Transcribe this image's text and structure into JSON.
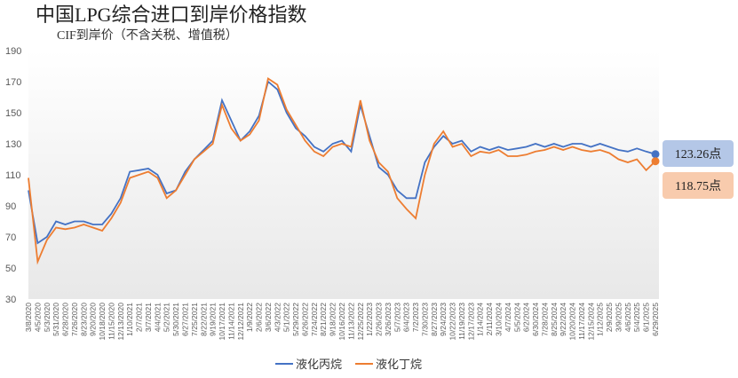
{
  "chart_data": {
    "type": "line",
    "title": "中国LPG综合进口到岸价格指数",
    "subtitle": "CIF到岸价（不含关税、增值税）",
    "categories": [
      "3/8/2020",
      "4/5/2020",
      "5/3/2020",
      "5/31/2020",
      "6/28/2020",
      "7/26/2020",
      "8/23/2020",
      "9/20/2020",
      "10/18/2020",
      "11/15/2020",
      "12/13/2020",
      "1/10/2021",
      "2/7/2021",
      "3/7/2021",
      "4/4/2021",
      "5/2/2021",
      "5/30/2021",
      "6/27/2021",
      "7/25/2021",
      "8/22/2021",
      "9/19/2021",
      "10/17/2021",
      "11/14/2021",
      "12/12/2021",
      "1/9/2022",
      "2/6/2022",
      "3/6/2022",
      "4/3/2022",
      "5/1/2022",
      "5/29/2022",
      "6/26/2022",
      "7/24/2022",
      "8/21/2022",
      "9/18/2022",
      "10/16/2022",
      "11/13/2022",
      "12/25/2022",
      "1/22/2023",
      "2/26/2023",
      "3/26/2023",
      "5/7/2023",
      "6/4/2023",
      "7/2/2023",
      "7/30/2023",
      "8/27/2023",
      "9/24/2023",
      "10/22/2023",
      "11/19/2023",
      "12/17/2023",
      "1/14/2024",
      "2/11/2024",
      "3/10/2024",
      "4/7/2024",
      "5/5/2024",
      "6/2/2024",
      "6/30/2024",
      "7/28/2024",
      "8/25/2024",
      "9/22/2024",
      "10/20/2024",
      "11/17/2024",
      "12/15/2024",
      "1/12/2025",
      "2/9/2025",
      "3/9/2025",
      "4/6/2025",
      "5/4/2025",
      "6/1/2025",
      "6/29/2025"
    ],
    "series": [
      {
        "name": "液化丙烷",
        "color": "#4472c4",
        "values": [
          100,
          66,
          70,
          80,
          78,
          80,
          80,
          78,
          78,
          85,
          95,
          112,
          113,
          114,
          110,
          98,
          100,
          112,
          120,
          126,
          132,
          158,
          145,
          132,
          138,
          148,
          170,
          165,
          150,
          140,
          135,
          128,
          125,
          130,
          132,
          125,
          155,
          135,
          115,
          110,
          100,
          95,
          95,
          118,
          128,
          135,
          130,
          132,
          125,
          128,
          126,
          128,
          126,
          127,
          128,
          130,
          128,
          130,
          128,
          130,
          130,
          128,
          130,
          128,
          126,
          125,
          127,
          125,
          123.26
        ],
        "value_labels": [
          null,
          null,
          null,
          null,
          null,
          null,
          null,
          null,
          null,
          null,
          null,
          null,
          null,
          null,
          null,
          null,
          null,
          null,
          null,
          null,
          null,
          null,
          null,
          null,
          null,
          null,
          null,
          null,
          null,
          null,
          null,
          null,
          null,
          null,
          null,
          null,
          null,
          null,
          null,
          null,
          null,
          null,
          null,
          null,
          null,
          null,
          null,
          null,
          null,
          null,
          null,
          null,
          null,
          null,
          null,
          null,
          null,
          null,
          null,
          null,
          null,
          null,
          null,
          null,
          null,
          null,
          null,
          null,
          "123.26点"
        ],
        "end_box": "#b4c7e7"
      },
      {
        "name": "液化丁烷",
        "color": "#ed7d31",
        "values": [
          108,
          54,
          68,
          76,
          75,
          76,
          78,
          76,
          74,
          82,
          92,
          108,
          110,
          112,
          108,
          95,
          100,
          110,
          120,
          125,
          130,
          155,
          140,
          132,
          136,
          145,
          172,
          168,
          152,
          142,
          132,
          125,
          122,
          128,
          130,
          128,
          158,
          132,
          118,
          112,
          95,
          88,
          82,
          110,
          130,
          138,
          128,
          130,
          122,
          125,
          124,
          126,
          122,
          122,
          123,
          125,
          126,
          128,
          126,
          128,
          126,
          125,
          126,
          124,
          120,
          118,
          120,
          113,
          118.75
        ],
        "value_labels": [
          null,
          null,
          null,
          null,
          null,
          null,
          null,
          null,
          null,
          null,
          null,
          null,
          null,
          null,
          null,
          null,
          null,
          null,
          null,
          null,
          null,
          null,
          null,
          null,
          null,
          null,
          null,
          null,
          null,
          null,
          null,
          null,
          null,
          null,
          null,
          null,
          null,
          null,
          null,
          null,
          null,
          null,
          null,
          null,
          null,
          null,
          null,
          null,
          null,
          null,
          null,
          null,
          null,
          null,
          null,
          null,
          null,
          null,
          null,
          null,
          null,
          null,
          null,
          null,
          null,
          null,
          null,
          null,
          "118.75点"
        ],
        "end_box": "#f8cbad"
      }
    ],
    "ylim": [
      30,
      190
    ],
    "yticks": [
      30,
      50,
      70,
      90,
      110,
      130,
      150,
      170,
      190
    ],
    "grid": false,
    "legend": "bottom"
  }
}
